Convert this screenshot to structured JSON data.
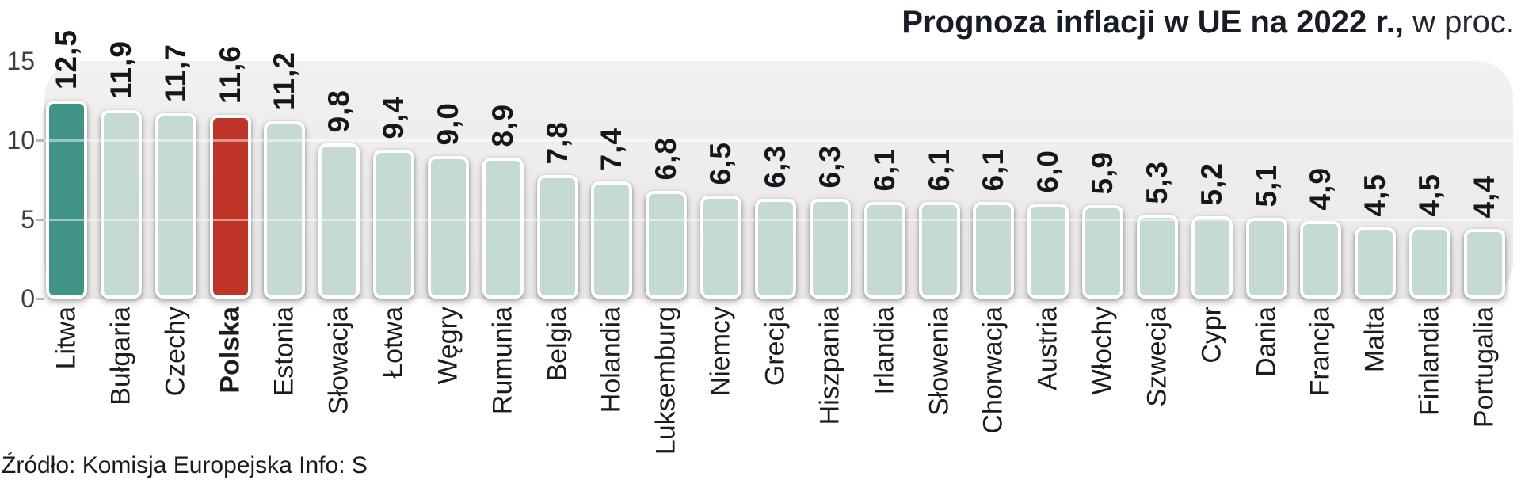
{
  "title": {
    "main": "Prognoza inflacji w UE na 2022 r.,",
    "suffix": " w proc."
  },
  "source_note": "Źródło: Komisja Europejska  Info: S",
  "colors": {
    "bar_default": "#c5dad4",
    "bar_teal": "#3f9487",
    "bar_red": "#be3426",
    "plot_bg": "#eeedeb",
    "text": "#15171c"
  },
  "chart_data": {
    "type": "bar",
    "title": "Prognoza inflacji w UE na 2022 r.",
    "subtitle": "w proc.",
    "ylabel": "",
    "xlabel": "",
    "ylim": [
      0,
      15
    ],
    "yticks": [
      0,
      5,
      10,
      15
    ],
    "grid": "horizontal",
    "legend_position": "none",
    "categories": [
      "Litwa",
      "Bułgaria",
      "Czechy",
      "Polska",
      "Estonia",
      "Słowacja",
      "Łotwa",
      "Węgry",
      "Rumunia",
      "Belgia",
      "Holandia",
      "Luksemburg",
      "Niemcy",
      "Grecja",
      "Hiszpania",
      "Irlandia",
      "Słowenia",
      "Chorwacja",
      "Austria",
      "Włochy",
      "Szwecja",
      "Cypr",
      "Dania",
      "Francja",
      "Malta",
      "Finlandia",
      "Portugalia"
    ],
    "values": [
      12.5,
      11.9,
      11.7,
      11.6,
      11.2,
      9.8,
      9.4,
      9.0,
      8.9,
      7.8,
      7.4,
      6.8,
      6.5,
      6.3,
      6.3,
      6.1,
      6.1,
      6.1,
      6.0,
      5.9,
      5.3,
      5.2,
      5.1,
      4.9,
      4.5,
      4.5,
      4.4
    ],
    "value_labels": [
      "12,5",
      "11,9",
      "11,7",
      "11,6",
      "11,2",
      "9,8",
      "9,4",
      "9,0",
      "8,9",
      "7,8",
      "7,4",
      "6,8",
      "6,5",
      "6,3",
      "6,3",
      "6,1",
      "6,1",
      "6,1",
      "6,0",
      "5,9",
      "5,3",
      "5,2",
      "5,1",
      "4,9",
      "4,5",
      "4,5",
      "4,4"
    ],
    "highlighted": [
      {
        "category": "Litwa",
        "style": "teal"
      },
      {
        "category": "Polska",
        "style": "red",
        "label_bold": true
      }
    ]
  }
}
